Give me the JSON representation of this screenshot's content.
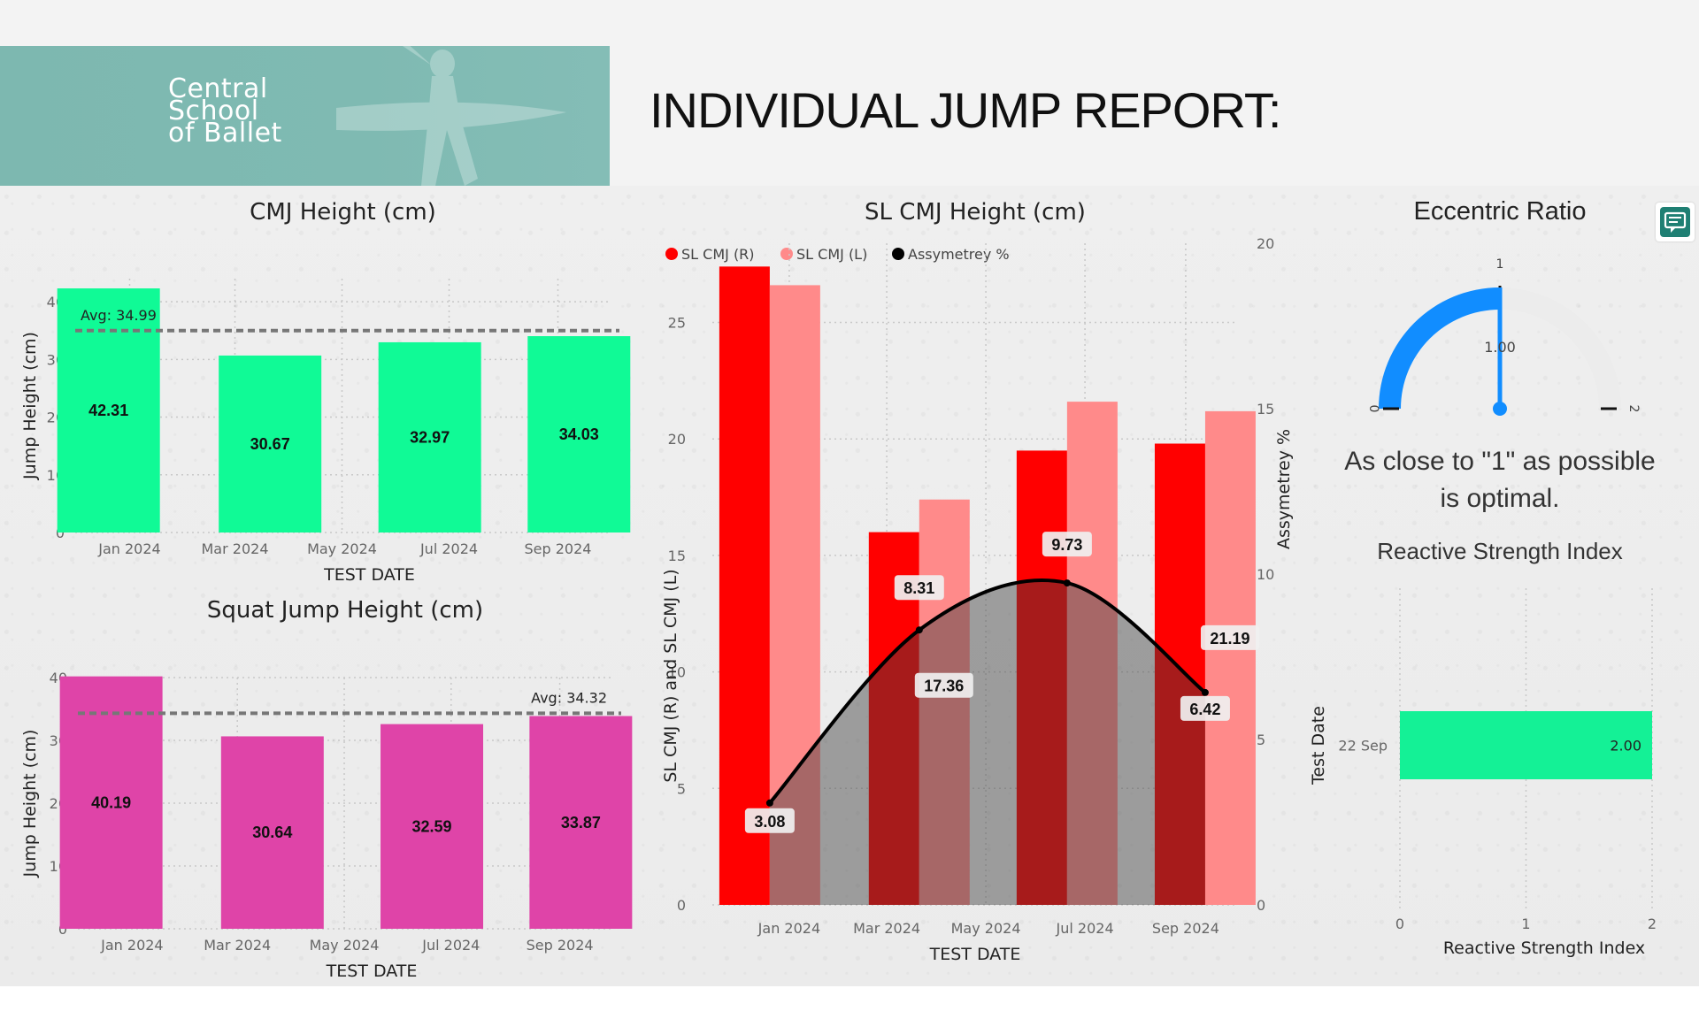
{
  "header": {
    "logo_text": "Central\nSchool\nof Ballet",
    "title": "INDIVIDUAL JUMP REPORT:"
  },
  "colors": {
    "cmj": "#10fa96",
    "squat": "#df44a8",
    "sl_right": "#ff0000",
    "sl_left": "#ff8a8a",
    "asym_line": "#000000",
    "gauge_fill": "#118dff",
    "rsi_bar": "#14f196"
  },
  "icons": {
    "comment": "comment-icon"
  },
  "chart_data": [
    {
      "id": "cmj",
      "type": "bar",
      "title": "CMJ Height (cm)",
      "xlabel": "TEST DATE",
      "ylabel": "Jump Height (cm)",
      "categories": [
        "Jan 2024",
        "Mar 2024",
        "May 2024",
        "Jul 2024",
        "Sep 2024"
      ],
      "bars": [
        {
          "date": "2023-12-20",
          "value": 42.31,
          "label": "42.31"
        },
        {
          "date": "2024-03-21",
          "value": 30.67,
          "label": "30.67"
        },
        {
          "date": "2024-06-20",
          "value": 32.97,
          "label": "32.97"
        },
        {
          "date": "2024-09-13",
          "value": 34.03,
          "label": "34.03"
        }
      ],
      "average": {
        "value": 34.99,
        "label": "Avg: 34.99",
        "position": "top-left"
      },
      "ylim": [
        0,
        44
      ],
      "yticks": [
        0,
        10,
        20,
        30,
        40
      ],
      "grid": true
    },
    {
      "id": "squat",
      "type": "bar",
      "title": "Squat Jump Height (cm)",
      "xlabel": "TEST DATE",
      "ylabel": "Jump Height (cm)",
      "categories": [
        "Jan 2024",
        "Mar 2024",
        "May 2024",
        "Jul 2024",
        "Sep 2024"
      ],
      "bars": [
        {
          "date": "2023-12-20",
          "value": 40.19,
          "label": "40.19"
        },
        {
          "date": "2024-03-21",
          "value": 30.64,
          "label": "30.64"
        },
        {
          "date": "2024-06-20",
          "value": 32.59,
          "label": "32.59"
        },
        {
          "date": "2024-09-13",
          "value": 33.87,
          "label": "33.87"
        }
      ],
      "average": {
        "value": 34.32,
        "label": "Avg: 34.32",
        "position": "top-right"
      },
      "ylim": [
        0,
        40
      ],
      "yticks": [
        0,
        10,
        20,
        30,
        40
      ],
      "grid": true
    },
    {
      "id": "sl_cmj",
      "type": "bar",
      "title": "SL CMJ Height (cm)",
      "xlabel": "TEST DATE",
      "ylabel": "SL CMJ (R) and SL CMJ (L)",
      "y2label": "Assymetrey %",
      "categories": [
        "Jan 2024",
        "Mar 2024",
        "May 2024",
        "Jul 2024",
        "Sep 2024"
      ],
      "legend": [
        "SL  CMJ (R)",
        "SL CMJ (L)",
        "Assymetrey %"
      ],
      "legend_position": "top-left",
      "dates": [
        "2023-12-20",
        "2024-03-21",
        "2024-06-20",
        "2024-09-13"
      ],
      "series": [
        {
          "name": "SL  CMJ (R)",
          "values": [
            27.4,
            16.0,
            19.5,
            19.8
          ]
        },
        {
          "name": "SL CMJ (L)",
          "values": [
            26.6,
            17.4,
            21.6,
            21.19
          ]
        },
        {
          "name": "Assymetrey %",
          "values": [
            3.08,
            8.31,
            9.73,
            6.42
          ],
          "type": "line",
          "axis": "right"
        }
      ],
      "data_labels": [
        {
          "text": "3.08",
          "series": "Assymetrey %",
          "index": 0
        },
        {
          "text": "8.31",
          "series": "Assymetrey %",
          "index": 1
        },
        {
          "text": "9.73",
          "series": "Assymetrey %",
          "index": 2
        },
        {
          "text": "6.42",
          "series": "Assymetrey %",
          "index": 3
        },
        {
          "text": "17.36",
          "series": "SL CMJ (L)",
          "index": 1
        },
        {
          "text": "21.19",
          "series": "SL CMJ (L)",
          "index": 3
        }
      ],
      "ylim": [
        0,
        28.4
      ],
      "yticks": [
        0,
        5,
        10,
        15,
        20,
        25
      ],
      "y2lim": [
        0,
        20
      ],
      "y2ticks": [
        0,
        5,
        10,
        15,
        20
      ],
      "grid": true
    },
    {
      "id": "eccentric",
      "type": "gauge",
      "title": "Eccentric Ratio",
      "min": 0,
      "max": 2,
      "value": 1.0,
      "value_label": "1.00",
      "target": 1,
      "target_label": "1",
      "min_label": "0",
      "max_label": "2",
      "note": "As close to \"1\" as possible is optimal."
    },
    {
      "id": "rsi",
      "type": "bar",
      "orientation": "horizontal",
      "title": "Reactive Strength Index",
      "xlabel": "Reactive Strength Index",
      "ylabel": "Test Date",
      "categories": [
        "22 Sep"
      ],
      "values": [
        2.0
      ],
      "value_labels": [
        "2.00"
      ],
      "xlim": [
        0,
        2
      ],
      "xticks": [
        0,
        1,
        2
      ],
      "grid": true
    }
  ]
}
